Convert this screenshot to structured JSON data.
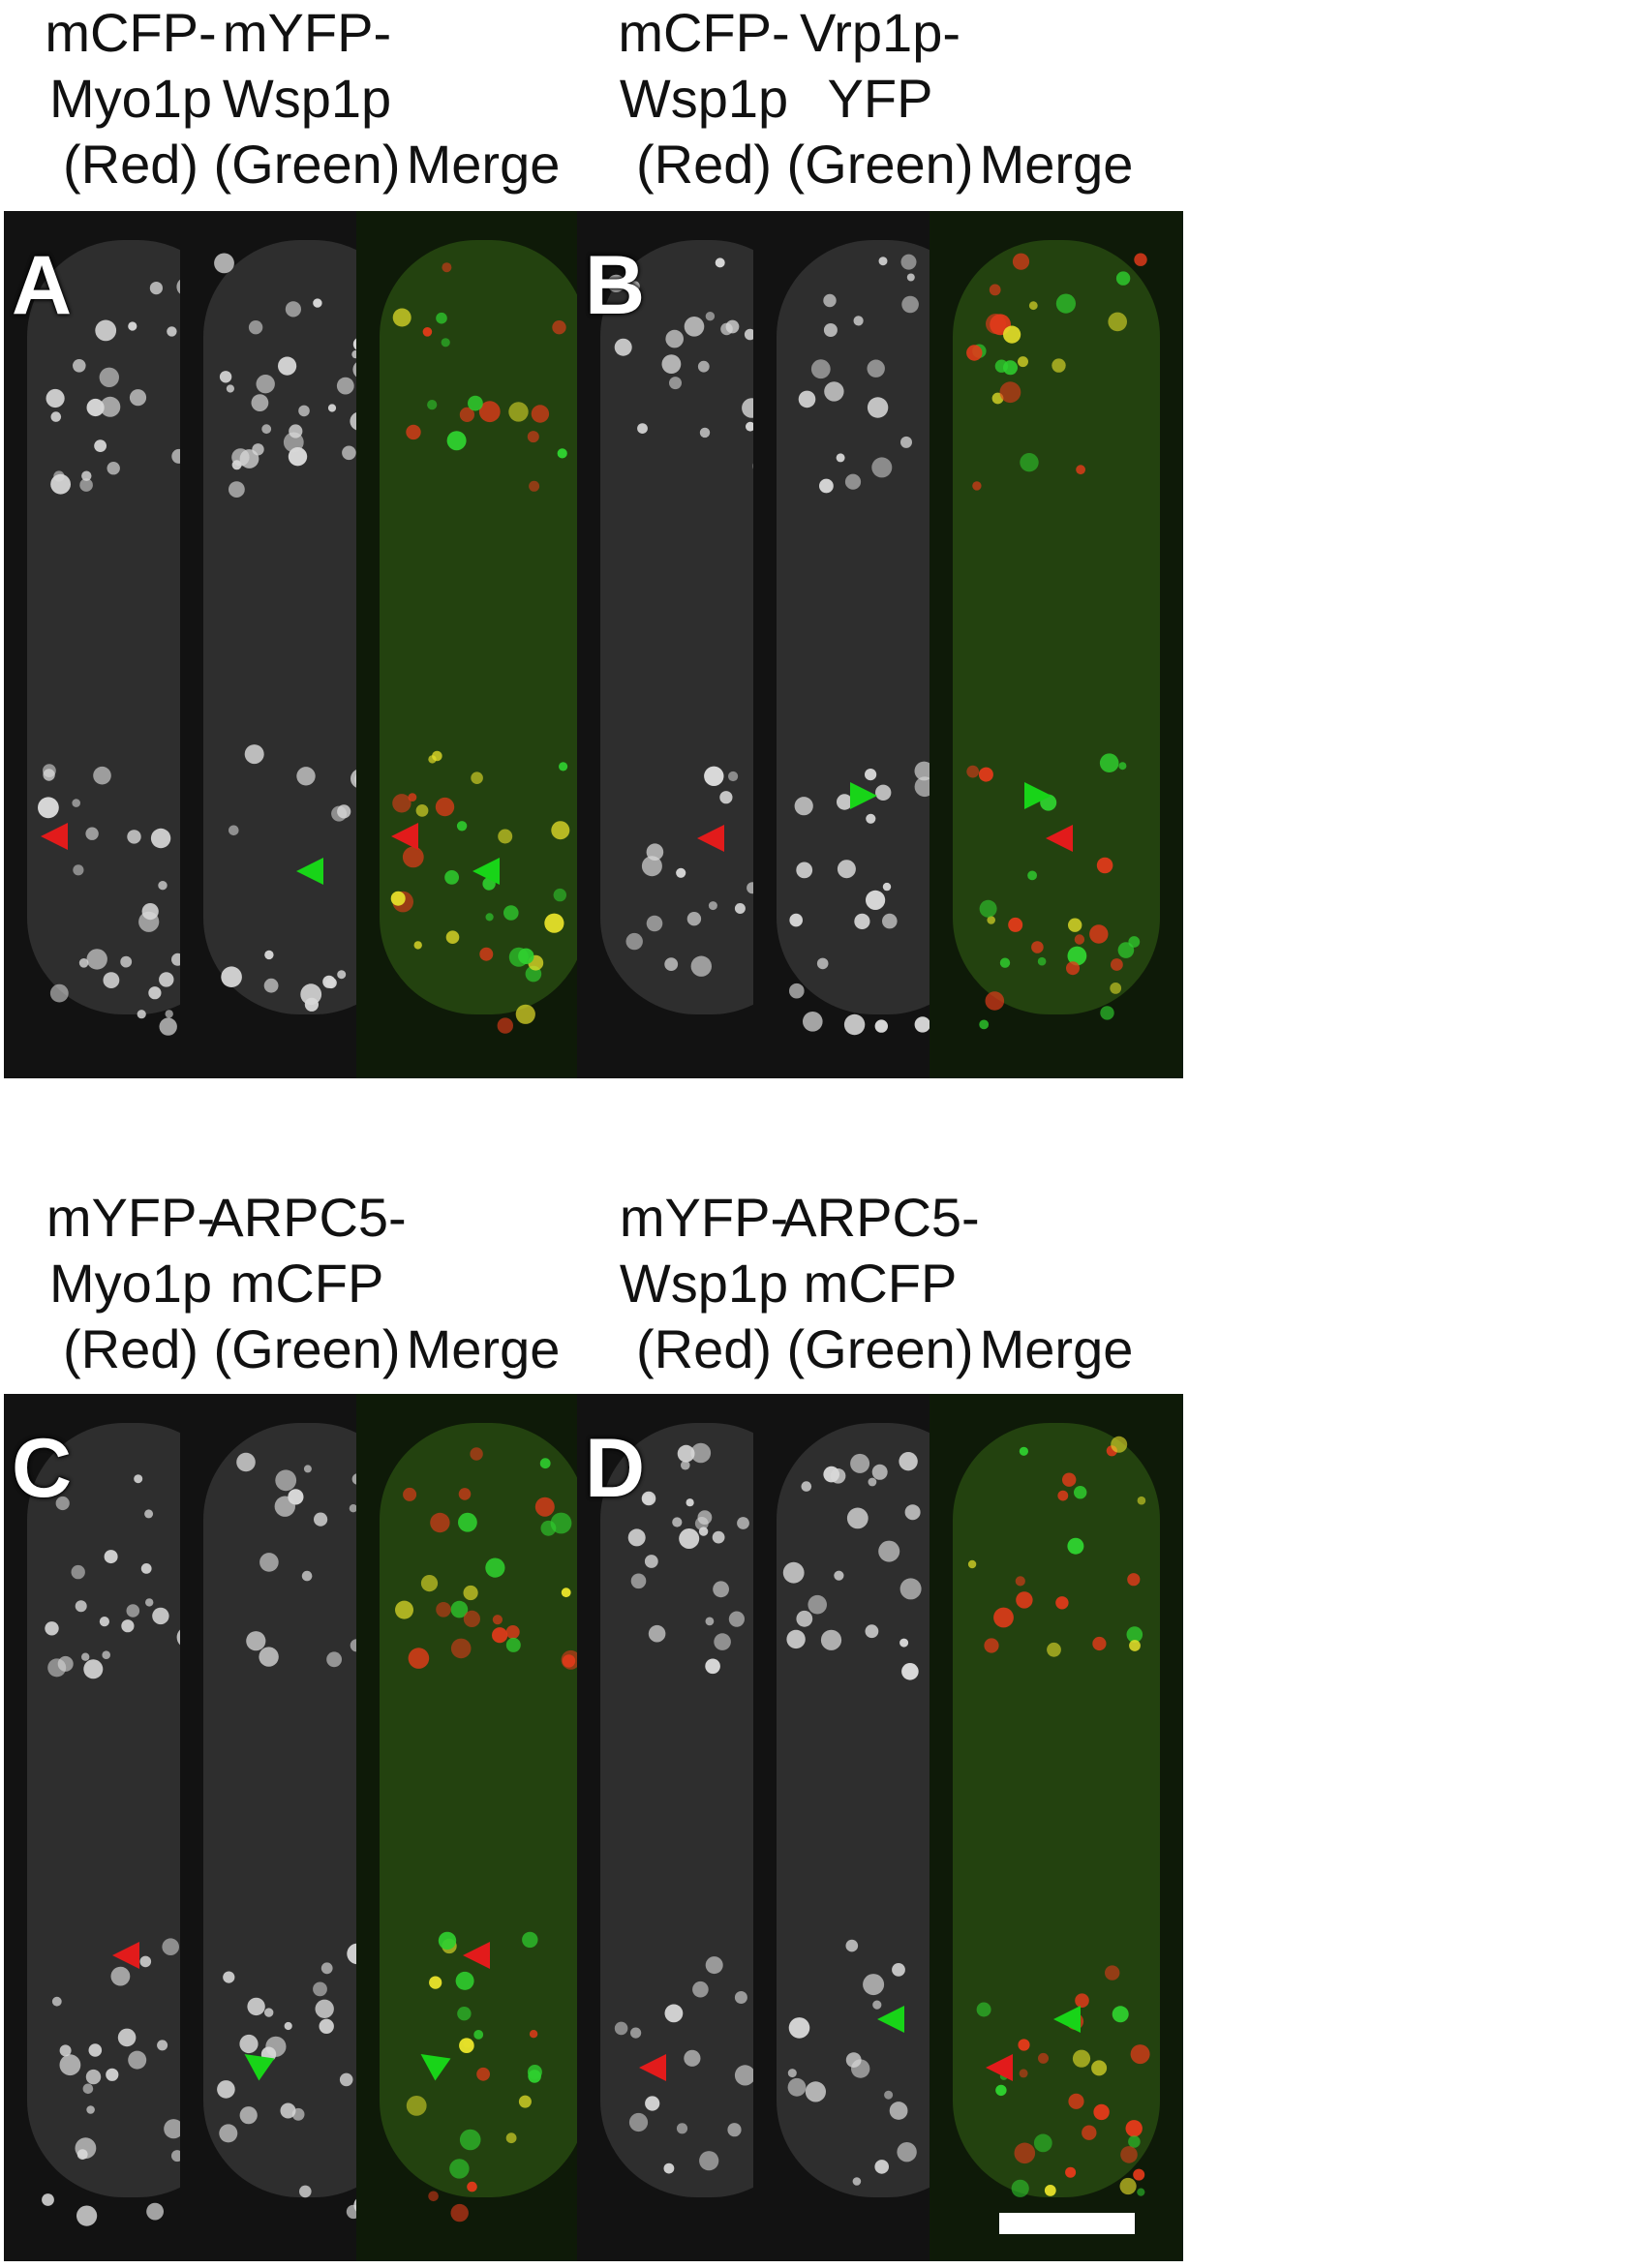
{
  "figure": {
    "colors": {
      "red_arrow": "#e21b1b",
      "green_arrow": "#18d418",
      "cell_red": "#e23a1a",
      "cell_green": "#2fcf2f",
      "grey": "#d8d8d8"
    },
    "panels": [
      {
        "letter": "A",
        "labels": [
          "mCFP-\nMyo1p\n(Red)",
          "mYFP-\nWsp1p\n(Green)",
          "Merge"
        ]
      },
      {
        "letter": "B",
        "labels": [
          "mCFP-\nWsp1p\n(Red)",
          "Vrp1p-\nYFP\n(Green)",
          "Merge"
        ]
      },
      {
        "letter": "C",
        "labels": [
          "mYFP-\nMyo1p\n(Red)",
          "ARPC5-\nmCFP\n(Green)",
          "Merge"
        ]
      },
      {
        "letter": "D",
        "labels": [
          "mYFP-\nWsp1p\n(Red)",
          "ARPC5-\nmCFP\n(Green)",
          "Merge"
        ]
      }
    ]
  }
}
